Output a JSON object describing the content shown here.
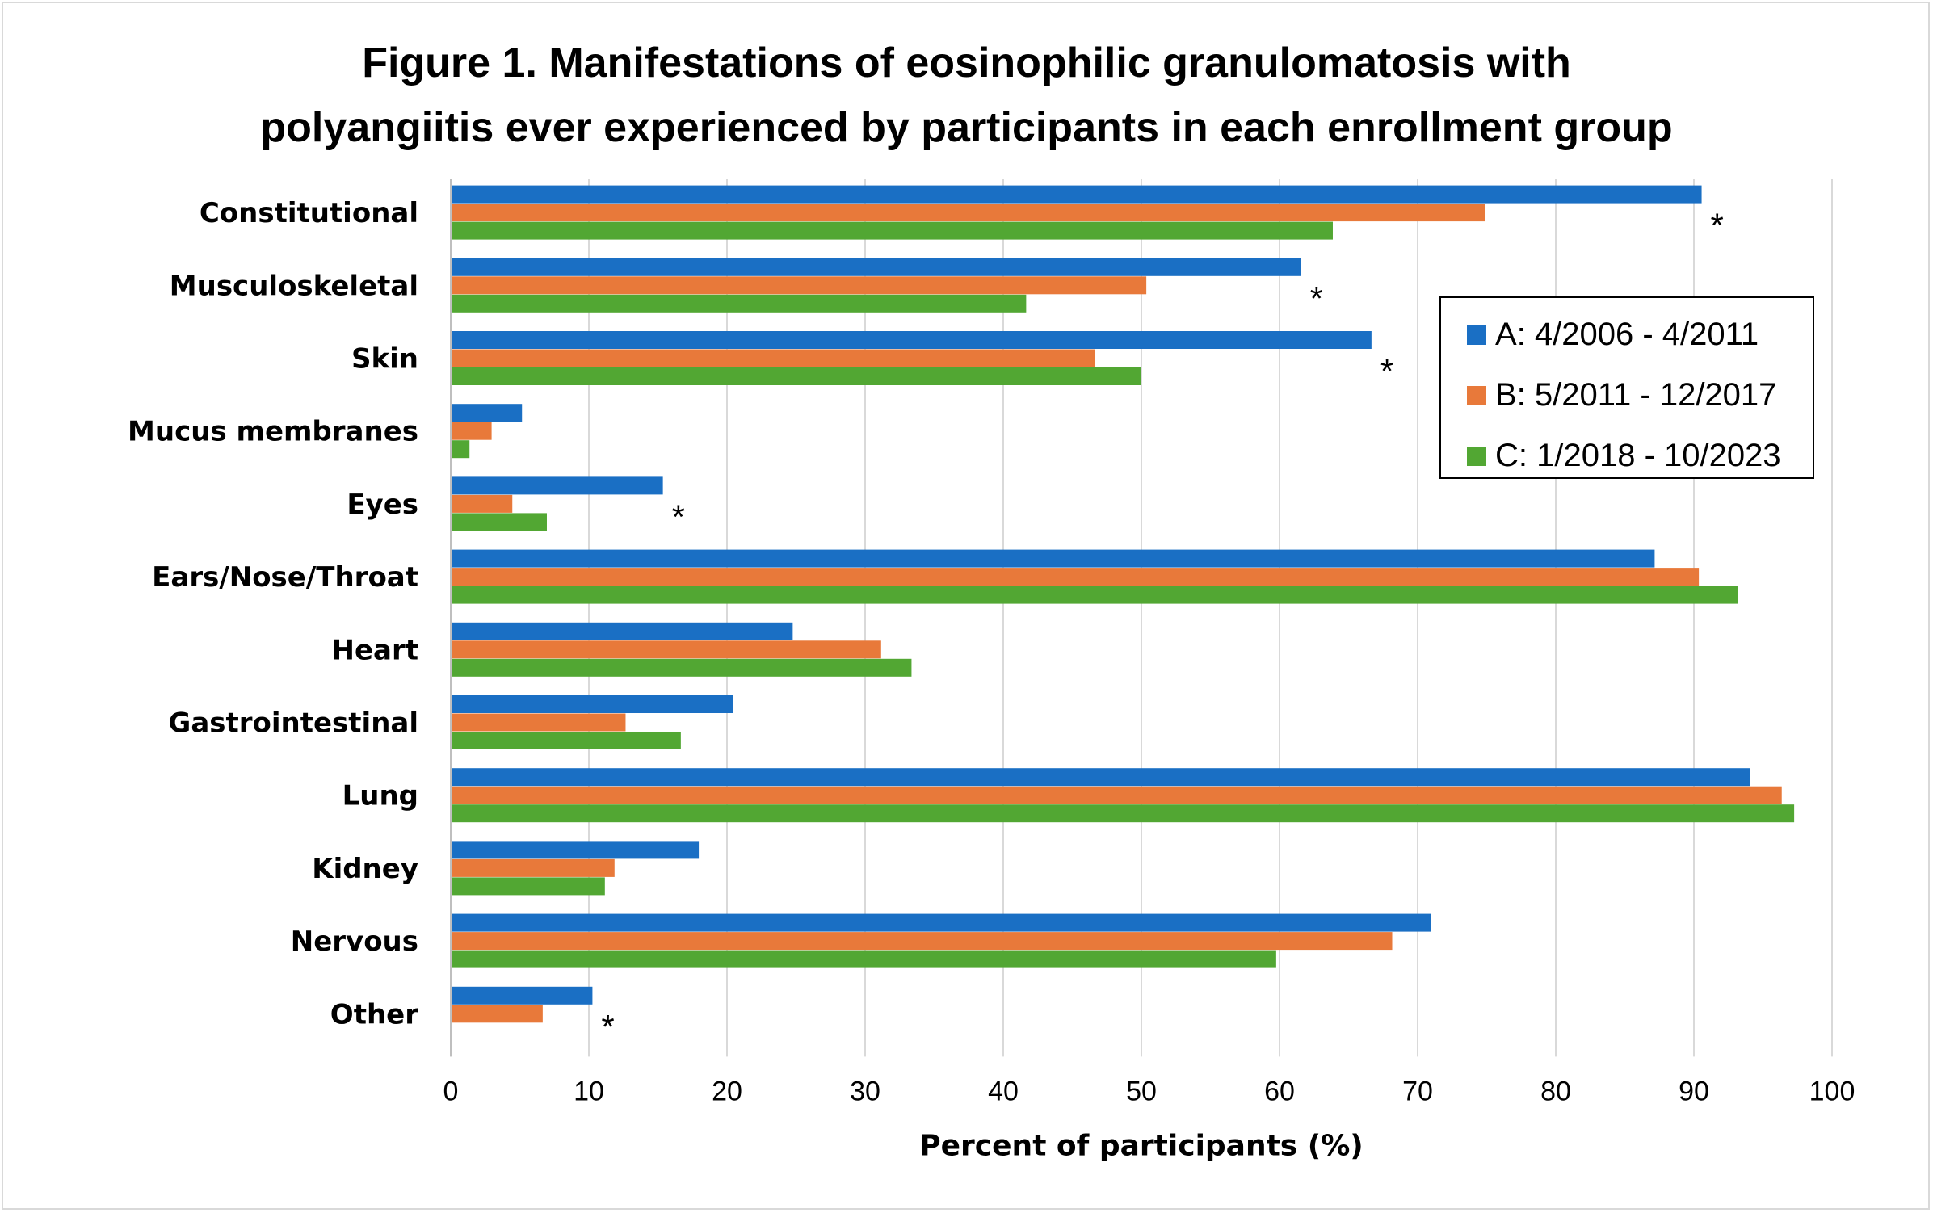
{
  "chart_data": {
    "type": "bar",
    "orientation": "horizontal",
    "title_lines": [
      "Figure 1. Manifestations of eosinophilic granulomatosis with",
      "polyangiitis ever experienced by participants in each enrollment group"
    ],
    "xlabel": "Percent of participants (%)",
    "ylabel": "",
    "xlim": [
      0,
      100
    ],
    "xticks": [
      0,
      10,
      20,
      30,
      40,
      50,
      60,
      70,
      80,
      90,
      100
    ],
    "grid": true,
    "legend_position": "top-right",
    "categories": [
      "Constitutional",
      "Musculoskeletal",
      "Skin",
      "Mucus membranes",
      "Eyes",
      "Ears/Nose/Throat",
      "Heart",
      "Gastrointestinal",
      "Lung",
      "Kidney",
      "Nervous",
      "Other"
    ],
    "series": [
      {
        "name": "A: 4/2006 - 4/2011",
        "color": "#1a6fc4",
        "values": [
          90.5,
          61.5,
          66.6,
          5.1,
          15.3,
          87.1,
          24.7,
          20.4,
          94.0,
          17.9,
          70.9,
          10.2
        ]
      },
      {
        "name": "B: 5/2011 - 12/2017",
        "color": "#e8793a",
        "values": [
          74.8,
          50.3,
          46.6,
          2.9,
          4.4,
          90.3,
          31.1,
          12.6,
          96.3,
          11.8,
          68.1,
          6.6
        ]
      },
      {
        "name": "C: 1/2018 - 10/2023",
        "color": "#52a733",
        "values": [
          63.8,
          41.6,
          49.9,
          1.3,
          6.9,
          93.1,
          33.3,
          16.6,
          97.2,
          11.1,
          59.7,
          null
        ]
      }
    ],
    "significance_marker": "*",
    "significant_categories": [
      "Constitutional",
      "Musculoskeletal",
      "Skin",
      "Eyes",
      "Other"
    ]
  }
}
